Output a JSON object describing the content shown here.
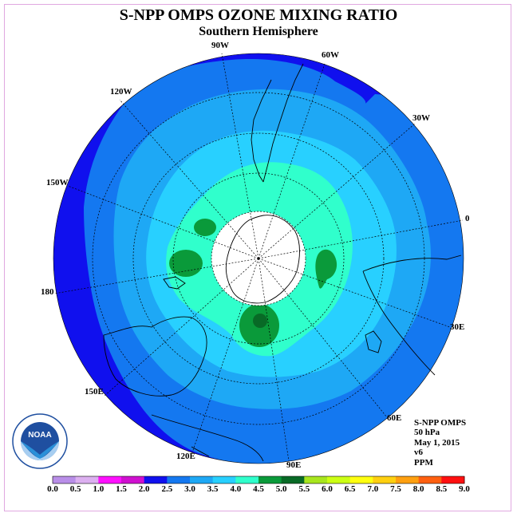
{
  "title": "S-NPP OMPS OZONE MIXING RATIO",
  "subtitle": "Southern Hemisphere",
  "longitude_labels": {
    "w90": "90W",
    "w60": "60W",
    "w120": "120W",
    "w30": "30W",
    "w150": "150W",
    "zero": "0",
    "l180": "180",
    "e30": "30E",
    "e150": "150E",
    "e60": "60E",
    "e120": "120E",
    "e90": "90E"
  },
  "info": {
    "instrument": "S-NPP OMPS",
    "level": "50 hPa",
    "date": "May 1, 2015",
    "version": "v6",
    "units": "PPM"
  },
  "colorbar": {
    "labels": [
      "0.0",
      "0.5",
      "1.0",
      "1.5",
      "2.0",
      "2.5",
      "3.0",
      "3.5",
      "4.0",
      "4.5",
      "5.0",
      "5.5",
      "6.0",
      "6.5",
      "7.0",
      "7.5",
      "8.0",
      "8.5",
      "9.0"
    ],
    "colors": [
      "#b98ee8",
      "#dcb0f0",
      "#ff10ff",
      "#d010d0",
      "#1010ee",
      "#1478f0",
      "#1ea8f5",
      "#28d0ff",
      "#30ffcc",
      "#0a9a3a",
      "#086a26",
      "#a8e61e",
      "#ccff14",
      "#ffff10",
      "#ffd010",
      "#ffa010",
      "#ff6010",
      "#ff1010",
      "#8b5a2b"
    ]
  },
  "map_colors": {
    "level_2_0": "#1010ee",
    "level_2_5": "#1478f0",
    "level_3_0": "#1ea8f5",
    "level_3_5": "#28d0ff",
    "level_4_0": "#30ffcc",
    "level_4_5": "#0a9a3a",
    "level_5_0": "#086a26"
  },
  "logo": {
    "text": "NOAA"
  }
}
